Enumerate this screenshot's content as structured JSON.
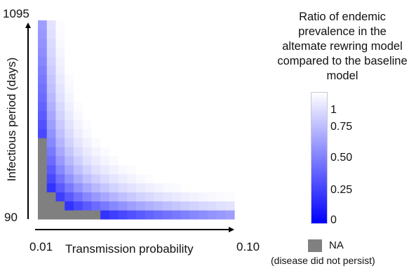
{
  "chart_data": {
    "type": "heatmap",
    "title": "",
    "xlabel": "Transmission probability",
    "ylabel": "Infectious period (days)",
    "x_range": [
      0.01,
      0.1
    ],
    "y_range": [
      90,
      1095
    ],
    "x_tick_labels": [
      "0.01",
      "0.10"
    ],
    "y_tick_labels": [
      "90",
      "1095"
    ],
    "grid_size": [
      22,
      22
    ],
    "colorbar": {
      "title": "Ratio of endemic prevalence in the altemate rewring model compared to the baseline model",
      "ticks": [
        "1",
        "0.75",
        "0.50",
        "0.25",
        "0"
      ],
      "range": [
        0,
        1
      ],
      "low_color": "#0000ff",
      "high_color": "#ffffff"
    },
    "na_color": "#808080",
    "na_label": "NA",
    "na_note": "(disease did not persist)",
    "pattern": "Ratio rises from 0 (blue) near the NA/extinction boundary toward 1 (white) at high transmission probability and long infectious period; bottom-left corner is NA."
  }
}
